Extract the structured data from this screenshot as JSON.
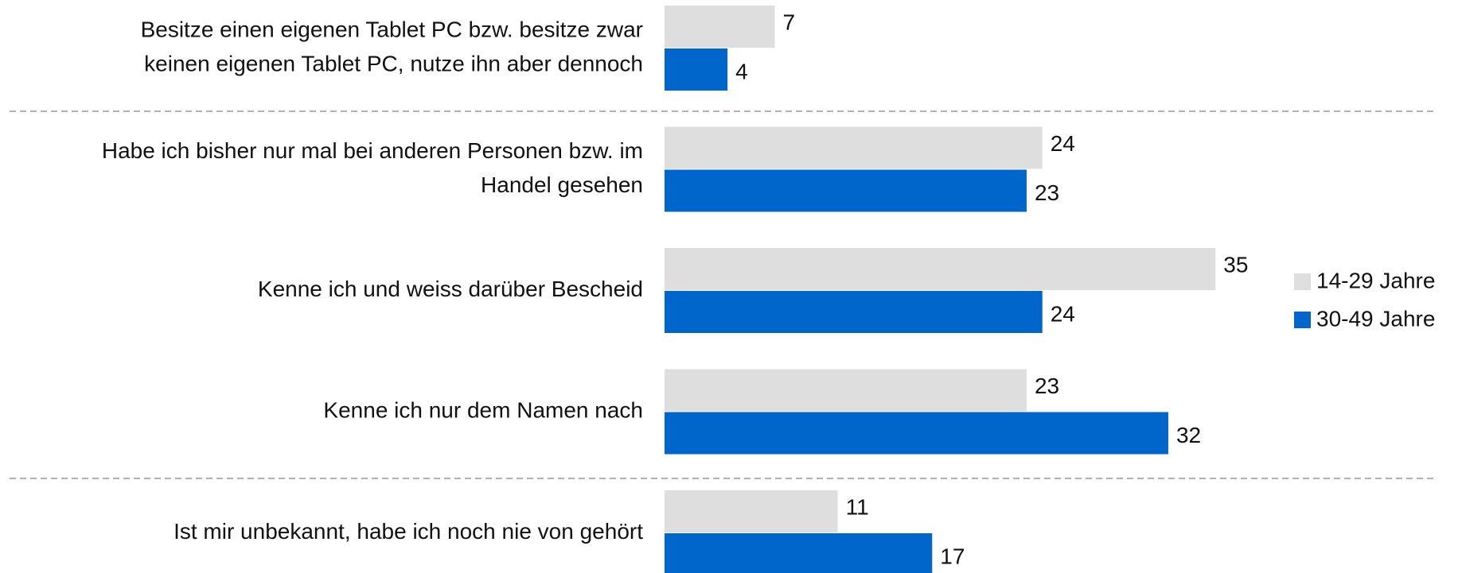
{
  "chart_data": {
    "type": "barh",
    "categories": [
      "Besitze einen eigenen Tablet PC bzw. besitze zwar\nkeinen eigenen Tablet PC, nutze ihn aber dennoch",
      "Habe ich bisher nur mal bei anderen Personen bzw. im\nHandel gesehen",
      "Kenne ich und weiss darüber Bescheid",
      "Kenne ich nur dem Namen nach",
      "Ist mir unbekannt, habe ich noch nie von gehört"
    ],
    "series": [
      {
        "name": "14-29 Jahre",
        "color": "#dedede",
        "values": [
          7,
          24,
          35,
          23,
          11
        ]
      },
      {
        "name": "30-49 Jahre",
        "color": "#0066cc",
        "values": [
          4,
          23,
          24,
          32,
          17
        ]
      }
    ],
    "legend": "right"
  }
}
